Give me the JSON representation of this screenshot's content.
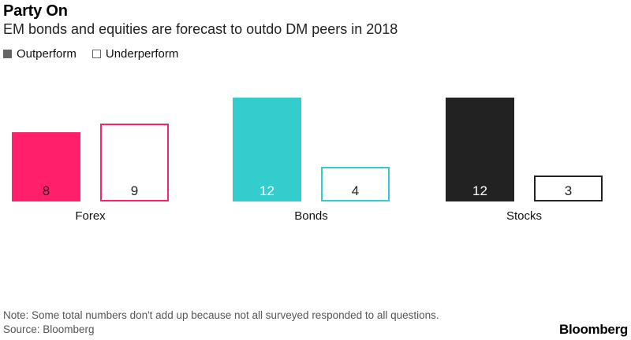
{
  "header": {
    "title": "Party On",
    "subtitle": "EM bonds and equities are forecast to outdo DM peers in 2018"
  },
  "legend": {
    "outperform": "Outperform",
    "underperform": "Underperform"
  },
  "footer": {
    "note": "Note: Some total numbers don't add up because not all surveyed responded to all questions.",
    "source": "Source: Bloomberg",
    "brand": "Bloomberg"
  },
  "chart_data": {
    "type": "bar",
    "categories": [
      "Forex",
      "Bonds",
      "Stocks"
    ],
    "series": [
      {
        "name": "Outperform",
        "values": [
          8,
          12,
          12
        ]
      },
      {
        "name": "Underperform",
        "values": [
          9,
          4,
          3
        ]
      }
    ],
    "colors": [
      "#ff1f6a",
      "#33cdcd",
      "#222222"
    ],
    "ylim": [
      0,
      12
    ],
    "legend_position": "top-left",
    "grid": false,
    "data_labels": true
  }
}
